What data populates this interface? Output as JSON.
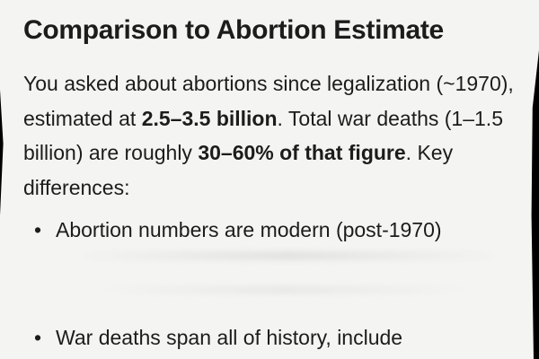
{
  "heading": "Comparison to Abortion Estimate",
  "paragraph": {
    "part1": "You asked about abortions since legalization (~1970), estimated at ",
    "bold1": "2.5–3.5 billion",
    "part2": ". Total war deaths (1–1.5 billion) are roughly ",
    "bold2": "30–60% of that figure",
    "part3": ". Key differences:"
  },
  "bullets": [
    {
      "marker": "•",
      "text": "Abortion numbers are modern (post-1970)"
    },
    {
      "marker": "•",
      "text": "War deaths span all of history, include"
    }
  ],
  "colors": {
    "text": "#1c1c1c",
    "background": "#f4f4f2",
    "edges": "#000000"
  }
}
